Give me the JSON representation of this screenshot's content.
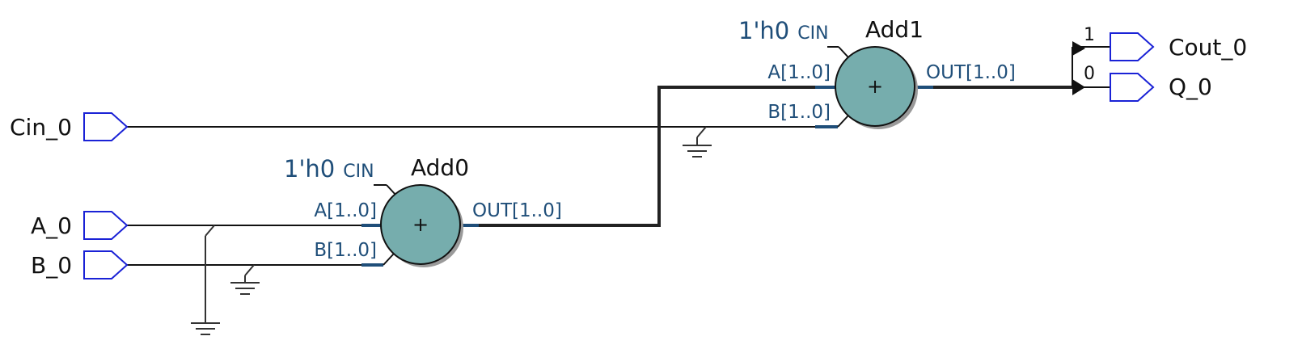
{
  "pins": {
    "cin_0": "Cin_0",
    "a_0": "A_0",
    "b_0": "B_0",
    "cout_0": "Cout_0",
    "q_0": "Q_0"
  },
  "adders": [
    {
      "name": "Add0",
      "operator": "+",
      "cin_value": "1'h0",
      "cin_port": "CIN",
      "port_a": "A[1..0]",
      "port_b": "B[1..0]",
      "port_out": "OUT[1..0]"
    },
    {
      "name": "Add1",
      "operator": "+",
      "cin_value": "1'h0",
      "cin_port": "CIN",
      "port_a": "A[1..0]",
      "port_b": "B[1..0]",
      "port_out": "OUT[1..0]"
    }
  ],
  "bus_split": {
    "bit1": "1",
    "bit0": "0"
  },
  "colors": {
    "pin_outline": "#1a22d6",
    "adder_fill": "#76adad",
    "port_label": "#1f4e79"
  }
}
